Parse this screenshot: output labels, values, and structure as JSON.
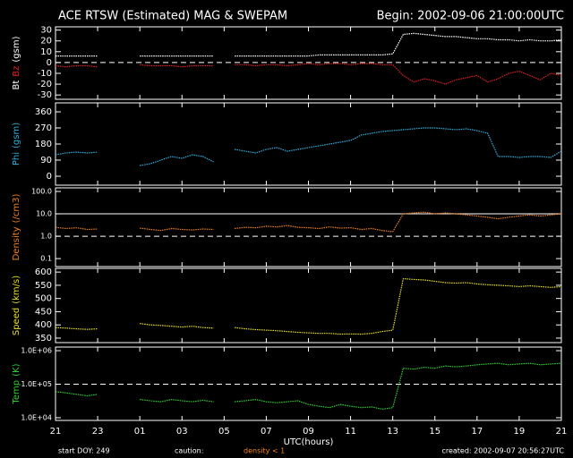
{
  "header": {
    "title": "ACE RTSW (Estimated) MAG & SWEPAM",
    "begin": "Begin: 2002-09-06 21:00:00UTC"
  },
  "footer": {
    "start": "start DOY: 249",
    "caution": "caution:",
    "caution_note": "density < 1",
    "created": "created: 2002-09-07 20:56:27UTC"
  },
  "chart_data": [
    {
      "type": "line",
      "ylabel": "(gsm)",
      "ylim": [
        -34,
        33
      ],
      "yticks": [
        30,
        20,
        10,
        0,
        -10,
        -20,
        -30
      ],
      "hlines": [
        {
          "value": 0,
          "dashed": true
        }
      ],
      "x": [
        0,
        0.5,
        1,
        1.5,
        2,
        2.5,
        3,
        3.5,
        4,
        4.5,
        5,
        5.5,
        6,
        6.5,
        7,
        7.5,
        8,
        8.5,
        9,
        9.5,
        10,
        10.5,
        11,
        11.5,
        12,
        12.5,
        13,
        13.5,
        14,
        14.5,
        15,
        15.5,
        16,
        16.5,
        17,
        17.5,
        18,
        18.5,
        19,
        19.5,
        20,
        20.5,
        21,
        21.5,
        22,
        22.5,
        23,
        23.5,
        24
      ],
      "series": [
        {
          "name": "Bt",
          "color": "#ffffff",
          "values": [
            6,
            6,
            6,
            6,
            6,
            null,
            null,
            null,
            6,
            6,
            6,
            6,
            6,
            6,
            6,
            6,
            null,
            6,
            6,
            6,
            6,
            6,
            6,
            6,
            6,
            7,
            7,
            7,
            7,
            7,
            7,
            7,
            8,
            26,
            27,
            26,
            25,
            24,
            24,
            23,
            22,
            22,
            21,
            21,
            20,
            21,
            20,
            20,
            21
          ]
        },
        {
          "name": "Bz",
          "color": "#e02020",
          "values": [
            -3,
            -4,
            -3,
            -3,
            -4,
            null,
            null,
            null,
            -2,
            -3,
            -3,
            -3,
            -4,
            -3,
            -3,
            -3,
            null,
            -2,
            -2,
            -3,
            -2,
            -2,
            -3,
            -2,
            -1,
            -2,
            -1,
            -1,
            -2,
            -1,
            -1,
            -2,
            -2,
            -12,
            -18,
            -15,
            -17,
            -20,
            -16,
            -14,
            -12,
            -18,
            -15,
            -10,
            -8,
            -12,
            -16,
            -10,
            -12
          ]
        }
      ]
    },
    {
      "type": "line",
      "ylabel": "(gsm)",
      "ylim": [
        -50,
        410
      ],
      "yticks": [
        0,
        90,
        180,
        270,
        360
      ],
      "x": [
        0,
        0.5,
        1,
        1.5,
        2,
        2.5,
        3,
        3.5,
        4,
        4.5,
        5,
        5.5,
        6,
        6.5,
        7,
        7.5,
        8,
        8.5,
        9,
        9.5,
        10,
        10.5,
        11,
        11.5,
        12,
        12.5,
        13,
        13.5,
        14,
        14.5,
        15,
        15.5,
        16,
        16.5,
        17,
        17.5,
        18,
        18.5,
        19,
        19.5,
        20,
        20.5,
        21,
        21.5,
        22,
        22.5,
        23,
        23.5,
        24
      ],
      "series": [
        {
          "name": "Phi",
          "color": "#30b0e0",
          "values": [
            120,
            130,
            135,
            130,
            135,
            null,
            null,
            null,
            60,
            70,
            90,
            110,
            100,
            120,
            110,
            80,
            null,
            150,
            140,
            130,
            150,
            160,
            140,
            150,
            160,
            170,
            180,
            190,
            200,
            230,
            240,
            250,
            255,
            260,
            265,
            270,
            270,
            265,
            260,
            265,
            255,
            240,
            110,
            110,
            105,
            110,
            110,
            105,
            140
          ]
        }
      ]
    },
    {
      "type": "line",
      "log": true,
      "ylabel": "(/cm3)",
      "ylim": [
        0.044,
        145
      ],
      "yticks": [
        {
          "value": 0.1,
          "label": "0.1"
        },
        {
          "value": 1,
          "label": "1.0"
        },
        {
          "value": 10,
          "label": "10.0"
        },
        {
          "value": 100,
          "label": "100.0"
        }
      ],
      "hlines": [
        {
          "value": 1,
          "dashed": true
        },
        {
          "value": 10,
          "dashed": false
        }
      ],
      "x": [
        0,
        0.5,
        1,
        1.5,
        2,
        2.5,
        3,
        3.5,
        4,
        4.5,
        5,
        5.5,
        6,
        6.5,
        7,
        7.5,
        8,
        8.5,
        9,
        9.5,
        10,
        10.5,
        11,
        11.5,
        12,
        12.5,
        13,
        13.5,
        14,
        14.5,
        15,
        15.5,
        16,
        16.5,
        17,
        17.5,
        18,
        18.5,
        19,
        19.5,
        20,
        20.5,
        21,
        21.5,
        22,
        22.5,
        23,
        23.5,
        24
      ],
      "series": [
        {
          "name": "Density",
          "color": "#f08020",
          "values": [
            2.5,
            2.2,
            2.4,
            2.0,
            2.1,
            null,
            null,
            null,
            2.3,
            2.0,
            1.8,
            2.2,
            2.0,
            1.9,
            2.1,
            2.0,
            null,
            2.2,
            2.5,
            2.4,
            2.8,
            2.6,
            3.0,
            2.5,
            2.4,
            2.2,
            2.6,
            2.3,
            2.4,
            2.0,
            2.2,
            1.8,
            1.6,
            10,
            11,
            12,
            10,
            11,
            10,
            9,
            8,
            7,
            6,
            7,
            8,
            9,
            8,
            9,
            10
          ]
        }
      ]
    },
    {
      "type": "line",
      "ylabel": "(km/s)",
      "ylim": [
        333,
        614
      ],
      "yticks": [
        350,
        400,
        450,
        500,
        550,
        600
      ],
      "x": [
        0,
        0.5,
        1,
        1.5,
        2,
        2.5,
        3,
        3.5,
        4,
        4.5,
        5,
        5.5,
        6,
        6.5,
        7,
        7.5,
        8,
        8.5,
        9,
        9.5,
        10,
        10.5,
        11,
        11.5,
        12,
        12.5,
        13,
        13.5,
        14,
        14.5,
        15,
        15.5,
        16,
        16.5,
        17,
        17.5,
        18,
        18.5,
        19,
        19.5,
        20,
        20.5,
        21,
        21.5,
        22,
        22.5,
        23,
        23.5,
        24
      ],
      "series": [
        {
          "name": "Speed",
          "color": "#e8e020",
          "values": [
            390,
            388,
            385,
            383,
            385,
            null,
            null,
            null,
            405,
            400,
            398,
            395,
            392,
            395,
            390,
            388,
            null,
            390,
            385,
            382,
            380,
            378,
            375,
            372,
            370,
            368,
            368,
            365,
            366,
            365,
            368,
            375,
            380,
            575,
            572,
            570,
            565,
            560,
            558,
            560,
            555,
            552,
            550,
            548,
            545,
            548,
            545,
            542,
            545
          ]
        }
      ]
    },
    {
      "type": "line",
      "log": true,
      "ylabel": "(K)",
      "ylim": [
        8300,
        1280000
      ],
      "yticks": [
        {
          "value": 10000,
          "label": "1.0E+04"
        },
        {
          "value": 100000,
          "label": "1.0E+05"
        },
        {
          "value": 1000000,
          "label": "1.0E+06"
        }
      ],
      "hlines": [
        {
          "value": 100000,
          "dashed": true
        }
      ],
      "xlabel": "UTC(hours)",
      "xlim": [
        0,
        24
      ],
      "xticks": [
        {
          "value": 0,
          "label": "21"
        },
        {
          "value": 2,
          "label": "23"
        },
        {
          "value": 4,
          "label": "01"
        },
        {
          "value": 6,
          "label": "03"
        },
        {
          "value": 8,
          "label": "05"
        },
        {
          "value": 10,
          "label": "07"
        },
        {
          "value": 12,
          "label": "09"
        },
        {
          "value": 14,
          "label": "11"
        },
        {
          "value": 16,
          "label": "13"
        },
        {
          "value": 18,
          "label": "15"
        },
        {
          "value": 20,
          "label": "17"
        },
        {
          "value": 22,
          "label": "19"
        },
        {
          "value": 24,
          "label": "21"
        }
      ],
      "x": [
        0,
        0.5,
        1,
        1.5,
        2,
        2.5,
        3,
        3.5,
        4,
        4.5,
        5,
        5.5,
        6,
        6.5,
        7,
        7.5,
        8,
        8.5,
        9,
        9.5,
        10,
        10.5,
        11,
        11.5,
        12,
        12.5,
        13,
        13.5,
        14,
        14.5,
        15,
        15.5,
        16,
        16.5,
        17,
        17.5,
        18,
        18.5,
        19,
        19.5,
        20,
        20.5,
        21,
        21.5,
        22,
        22.5,
        23,
        23.5,
        24
      ],
      "series": [
        {
          "name": "Temp",
          "color": "#30d030",
          "values": [
            60000,
            55000,
            50000,
            45000,
            50000,
            null,
            null,
            null,
            35000,
            32000,
            30000,
            35000,
            32000,
            30000,
            33000,
            30000,
            null,
            30000,
            32000,
            35000,
            30000,
            28000,
            30000,
            32000,
            25000,
            22000,
            20000,
            25000,
            22000,
            20000,
            21000,
            18000,
            20000,
            300000,
            280000,
            320000,
            300000,
            350000,
            330000,
            350000,
            380000,
            400000,
            420000,
            380000,
            400000,
            420000,
            380000,
            400000,
            420000
          ]
        }
      ]
    }
  ]
}
